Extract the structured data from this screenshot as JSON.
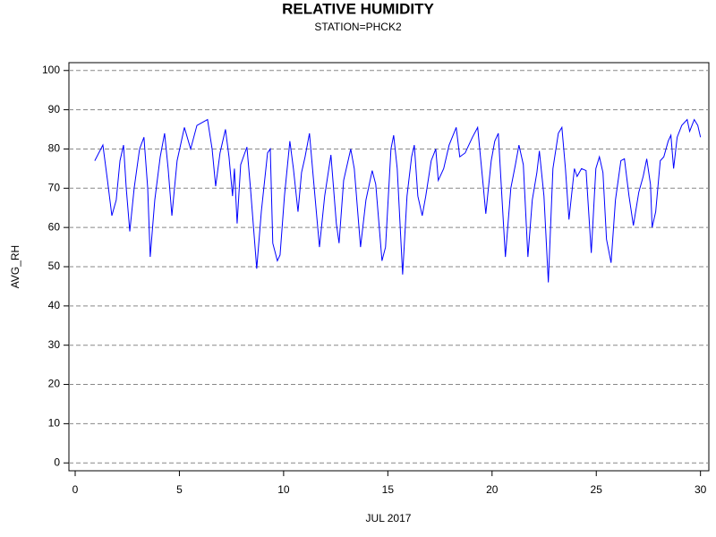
{
  "chart_data": {
    "type": "line",
    "title": "RELATIVE HUMIDITY",
    "subtitle": "STATION=PHCK2",
    "x_label": "JUL 2017",
    "y_label": "AVG_RH",
    "xlim": [
      -0.3,
      30.4
    ],
    "ylim": [
      -2,
      102
    ],
    "xticks": [
      0,
      5,
      10,
      15,
      20,
      25,
      30
    ],
    "yticks": [
      0,
      10,
      20,
      30,
      40,
      50,
      60,
      70,
      80,
      90,
      100
    ],
    "grid": true,
    "x": [
      0.94,
      1.33,
      1.55,
      1.76,
      1.97,
      2.15,
      2.32,
      2.45,
      2.62,
      2.83,
      3.09,
      3.3,
      3.48,
      3.6,
      3.82,
      4.08,
      4.29,
      4.46,
      4.64,
      4.89,
      5.24,
      5.54,
      5.84,
      6.35,
      6.57,
      6.74,
      6.95,
      7.21,
      7.38,
      7.55,
      7.64,
      7.77,
      7.94,
      8.24,
      8.41,
      8.71,
      8.93,
      9.23,
      9.36,
      9.48,
      9.7,
      9.83,
      10.04,
      10.3,
      10.47,
      10.69,
      10.86,
      11.03,
      11.24,
      11.42,
      11.72,
      11.97,
      12.27,
      12.53,
      12.66,
      12.88,
      13.22,
      13.39,
      13.69,
      13.95,
      14.25,
      14.42,
      14.72,
      14.89,
      15.15,
      15.28,
      15.45,
      15.71,
      15.92,
      16.14,
      16.27,
      16.44,
      16.65,
      16.82,
      17.08,
      17.3,
      17.42,
      17.68,
      17.94,
      18.28,
      18.45,
      18.71,
      19.06,
      19.31,
      19.57,
      19.7,
      19.96,
      20.13,
      20.3,
      20.47,
      20.64,
      20.9,
      21.12,
      21.29,
      21.5,
      21.72,
      21.93,
      22.15,
      22.27,
      22.49,
      22.7,
      22.92,
      23.18,
      23.35,
      23.52,
      23.69,
      23.95,
      24.08,
      24.29,
      24.51,
      24.76,
      24.98,
      25.15,
      25.32,
      25.49,
      25.71,
      25.92,
      26.18,
      26.35,
      26.57,
      26.78,
      27.04,
      27.25,
      27.42,
      27.6,
      27.68,
      27.85,
      28.07,
      28.24,
      28.45,
      28.58,
      28.71,
      28.88,
      29.1,
      29.36,
      29.48,
      29.7,
      29.87,
      30.0
    ],
    "series": [
      {
        "name": "AVG_RH",
        "color": "#0000ff",
        "values": [
          77,
          81,
          72,
          63,
          67,
          77,
          81,
          70,
          59,
          70,
          80,
          83,
          70,
          52.5,
          67,
          78,
          84,
          75,
          63,
          77,
          85.5,
          80,
          86,
          87.5,
          80,
          70.5,
          79,
          85,
          78,
          68,
          75,
          61,
          76,
          80.5,
          70,
          49.5,
          64,
          79,
          80,
          56,
          51.5,
          53,
          68,
          82,
          75,
          64,
          74,
          78,
          84,
          73,
          55,
          68,
          78.5,
          61,
          56,
          72,
          80,
          75,
          55,
          67,
          74.5,
          71,
          51.5,
          55,
          80,
          83.5,
          75,
          48,
          68,
          78,
          81,
          68,
          63,
          68,
          77,
          80,
          72,
          75,
          81,
          85.5,
          78,
          79,
          83,
          85.5,
          71,
          63.5,
          77,
          82,
          84,
          68,
          52.5,
          70,
          76,
          81,
          76,
          52.5,
          67,
          74,
          79.5,
          68,
          46,
          75,
          84,
          85.5,
          75,
          62,
          75,
          73,
          75,
          74.5,
          53.5,
          75,
          78,
          74,
          57,
          51,
          67,
          77,
          77.5,
          68,
          60.5,
          69,
          73,
          77.5,
          71,
          60,
          64,
          77,
          78,
          82,
          83.5,
          75,
          83,
          86,
          87.5,
          84.5,
          87.5,
          86,
          83
        ]
      }
    ]
  }
}
